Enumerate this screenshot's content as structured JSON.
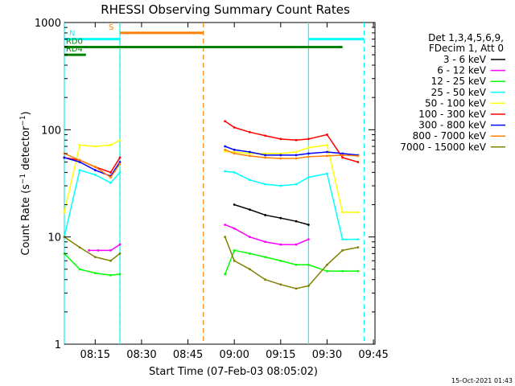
{
  "chart_data": {
    "type": "line",
    "title": "RHESSI Observing Summary Count Rates",
    "xlabel": "Start Time (07-Feb-03 08:05:02)",
    "ylabel_main": "Count Rate (s",
    "ylabel_sup1": "−1",
    "ylabel_mid": " detector",
    "ylabel_sup2": "−1",
    "ylabel_end": ")",
    "yscale": "log",
    "ylim": [
      1,
      1000
    ],
    "xlim_minutes": [
      "08:05:02",
      "09:45:30"
    ],
    "x_ticks": [
      "08:15",
      "08:30",
      "08:45",
      "09:00",
      "09:15",
      "09:30",
      "09:45"
    ],
    "y_ticks": [
      "1",
      "10",
      "100",
      "1000"
    ],
    "footer": "15-Oct-2021 01:43",
    "legend_header": [
      "Det 1,3,4,5,6,9,",
      "FDecim 1, Att 0"
    ],
    "series": [
      {
        "name": "3 - 6 keV",
        "color": "#000000",
        "x": [
          "09:00",
          "09:05",
          "09:10",
          "09:15",
          "09:20",
          "09:24"
        ],
        "values": [
          20,
          18,
          16,
          15,
          14,
          13
        ]
      },
      {
        "name": "6 - 12 keV",
        "color": "#ff00ff",
        "x": [
          "08:13",
          "08:16",
          "08:20",
          "08:23",
          "08:57",
          "09:00",
          "09:05",
          "09:10",
          "09:15",
          "09:20",
          "09:24"
        ],
        "values": [
          7.5,
          7.5,
          7.5,
          8.5,
          13,
          12,
          10,
          9,
          8.5,
          8.5,
          9.5
        ]
      },
      {
        "name": "12 - 25 keV",
        "color": "#00ff00",
        "x": [
          "08:05",
          "08:10",
          "08:15",
          "08:20",
          "08:23",
          "08:57",
          "09:00",
          "09:05",
          "09:10",
          "09:15",
          "09:20",
          "09:24",
          "09:30",
          "09:35",
          "09:40"
        ],
        "values": [
          7,
          5,
          4.6,
          4.4,
          4.5,
          4.5,
          7.5,
          7,
          6.5,
          6,
          5.5,
          5.5,
          4.8,
          4.8,
          4.8
        ]
      },
      {
        "name": "25 - 50 keV",
        "color": "#00ffff",
        "x": [
          "08:05",
          "08:10",
          "08:15",
          "08:20",
          "08:23",
          "08:57",
          "09:00",
          "09:05",
          "09:10",
          "09:15",
          "09:20",
          "09:24",
          "09:30",
          "09:35",
          "09:40"
        ],
        "values": [
          10,
          42,
          38,
          32,
          40,
          41,
          40,
          34,
          31,
          30,
          31,
          36,
          39,
          9.5,
          9.5
        ]
      },
      {
        "name": "50 - 100 keV",
        "color": "#ffff00",
        "x": [
          "08:05",
          "08:10",
          "08:15",
          "08:20",
          "08:23",
          "08:57",
          "09:00",
          "09:05",
          "09:10",
          "09:15",
          "09:20",
          "09:24",
          "09:30",
          "09:35",
          "09:40"
        ],
        "values": [
          17,
          72,
          70,
          72,
          80,
          63,
          62,
          60,
          60,
          60,
          62,
          68,
          72,
          17,
          17
        ]
      },
      {
        "name": "100 - 300 keV",
        "color": "#ff0000",
        "x": [
          "08:05",
          "08:10",
          "08:15",
          "08:20",
          "08:23",
          "08:57",
          "09:00",
          "09:05",
          "09:10",
          "09:15",
          "09:20",
          "09:24",
          "09:30",
          "09:35",
          "09:40"
        ],
        "values": [
          55,
          52,
          45,
          40,
          55,
          120,
          105,
          95,
          88,
          82,
          80,
          82,
          90,
          55,
          50
        ]
      },
      {
        "name": "300 - 800 keV",
        "color": "#0000ff",
        "x": [
          "08:05",
          "08:10",
          "08:15",
          "08:20",
          "08:23",
          "08:57",
          "09:00",
          "09:05",
          "09:10",
          "09:15",
          "09:20",
          "09:24",
          "09:30",
          "09:35",
          "09:40"
        ],
        "values": [
          55,
          50,
          42,
          37,
          50,
          70,
          65,
          62,
          58,
          58,
          58,
          60,
          62,
          60,
          58
        ]
      },
      {
        "name": "800 - 7000 keV",
        "color": "#ff8000",
        "x": [
          "08:05",
          "08:10",
          "08:15",
          "08:20",
          "08:23",
          "08:57",
          "09:00",
          "09:05",
          "09:10",
          "09:15",
          "09:20",
          "09:24",
          "09:30",
          "09:35",
          "09:40"
        ],
        "values": [
          60,
          52,
          45,
          36,
          48,
          65,
          60,
          57,
          55,
          54,
          54,
          56,
          57,
          58,
          57
        ]
      },
      {
        "name": "7000 - 15000 keV",
        "color": "#808000",
        "x": [
          "08:05",
          "08:10",
          "08:15",
          "08:20",
          "08:23",
          "08:57",
          "09:00",
          "09:05",
          "09:10",
          "09:15",
          "09:20",
          "09:24",
          "09:30",
          "09:35",
          "09:40"
        ],
        "values": [
          10,
          8,
          6.5,
          6,
          7,
          10,
          6,
          5,
          4,
          3.6,
          3.3,
          3.5,
          5.5,
          7.5,
          8
        ]
      }
    ],
    "state_bars": [
      {
        "label": "S",
        "color": "#ff8000",
        "start": "08:23",
        "end": "08:50",
        "level": 800
      },
      {
        "label": "N",
        "color": "#00ffff",
        "start": "08:05",
        "end": "08:23",
        "level": 700
      },
      {
        "label": "",
        "color": "#00ffff",
        "start": "09:24",
        "end": "09:42",
        "level": 700
      },
      {
        "label": "RD0",
        "color": "#008000",
        "start": "08:05",
        "end": "09:35",
        "level": 590
      },
      {
        "label": "RD4",
        "color": "#008000",
        "start": "08:05",
        "end": "08:12",
        "level": 500
      }
    ],
    "vertical_markers": [
      {
        "time": "08:23",
        "color": "#ff8000",
        "style": "dashed"
      },
      {
        "time": "08:50",
        "color": "#ff8000",
        "style": "dashed"
      },
      {
        "time": "08:05",
        "color": "#00ffff",
        "style": "solid"
      },
      {
        "time": "08:23",
        "color": "#00ffff",
        "style": "solid"
      },
      {
        "time": "09:24",
        "color": "#00ffff",
        "style": "solid"
      },
      {
        "time": "09:42",
        "color": "#00ffff",
        "style": "dashed"
      }
    ]
  }
}
